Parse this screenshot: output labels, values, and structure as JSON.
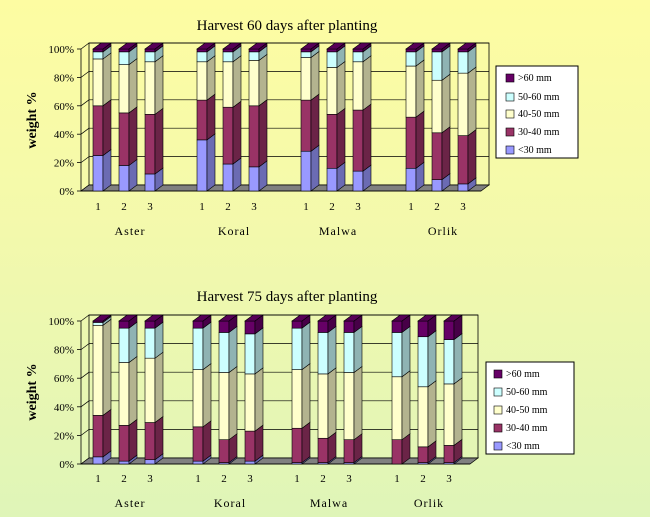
{
  "colors": {
    "lt30": "#9999ff",
    "r30_40": "#993366",
    "r40_50": "#ffffcc",
    "r50_60": "#ccffff",
    "gt60": "#660066",
    "floor": "#808080"
  },
  "legend_labels": [
    ">60 mm",
    "50-60 mm",
    "40-50 mm",
    "30-40 mm",
    "<30 mm"
  ],
  "chart_data": [
    {
      "type": "bar",
      "stacked": true,
      "title": "Harvest 60 days after planting",
      "ylabel": "weight %",
      "ylim": [
        0,
        100
      ],
      "yticks": [
        "0%",
        "20%",
        "40%",
        "60%",
        "80%",
        "100%"
      ],
      "groups": [
        {
          "name": "Aster",
          "bars": [
            {
              "label": "1",
              "values": [
                25,
                35,
                33,
                5,
                2
              ]
            },
            {
              "label": "2",
              "values": [
                18,
                37,
                34,
                9,
                2
              ]
            },
            {
              "label": "3",
              "values": [
                12,
                42,
                37,
                7,
                2
              ]
            }
          ]
        },
        {
          "name": "Koral",
          "bars": [
            {
              "label": "1",
              "values": [
                36,
                28,
                27,
                7,
                2
              ]
            },
            {
              "label": "2",
              "values": [
                19,
                40,
                32,
                7,
                2
              ]
            },
            {
              "label": "3",
              "values": [
                17,
                43,
                32,
                6,
                2
              ]
            }
          ]
        },
        {
          "name": "Malwa",
          "bars": [
            {
              "label": "1",
              "values": [
                28,
                36,
                30,
                4,
                2
              ]
            },
            {
              "label": "2",
              "values": [
                16,
                38,
                33,
                11,
                2
              ]
            },
            {
              "label": "3",
              "values": [
                14,
                43,
                34,
                7,
                2
              ]
            }
          ]
        },
        {
          "name": "Orlik",
          "bars": [
            {
              "label": "1",
              "values": [
                16,
                36,
                36,
                10,
                2
              ]
            },
            {
              "label": "2",
              "values": [
                8,
                33,
                37,
                20,
                2
              ]
            },
            {
              "label": "3",
              "values": [
                5,
                34,
                44,
                15,
                2
              ]
            }
          ]
        }
      ],
      "series_names": [
        "<30 mm",
        "30-40 mm",
        "40-50 mm",
        "50-60 mm",
        ">60 mm"
      ]
    },
    {
      "type": "bar",
      "stacked": true,
      "title": "Harvest 75 days after planting",
      "ylabel": "weight %",
      "ylim": [
        0,
        100
      ],
      "yticks": [
        "0%",
        "20%",
        "40%",
        "60%",
        "80%",
        "100%"
      ],
      "groups": [
        {
          "name": "Aster",
          "bars": [
            {
              "label": "1",
              "values": [
                5,
                29,
                63,
                2,
                1
              ]
            },
            {
              "label": "2",
              "values": [
                2,
                25,
                44,
                24,
                5
              ]
            },
            {
              "label": "3",
              "values": [
                3,
                26,
                45,
                21,
                5
              ]
            }
          ]
        },
        {
          "name": "Koral",
          "bars": [
            {
              "label": "1",
              "values": [
                2,
                24,
                40,
                29,
                5
              ]
            },
            {
              "label": "2",
              "values": [
                1,
                16,
                47,
                28,
                8
              ]
            },
            {
              "label": "3",
              "values": [
                2,
                21,
                40,
                28,
                9
              ]
            }
          ]
        },
        {
          "name": "Malwa",
          "bars": [
            {
              "label": "1",
              "values": [
                1,
                24,
                41,
                29,
                5
              ]
            },
            {
              "label": "2",
              "values": [
                1,
                17,
                45,
                29,
                8
              ]
            },
            {
              "label": "3",
              "values": [
                1,
                16,
                47,
                28,
                8
              ]
            }
          ]
        },
        {
          "name": "Orlik",
          "bars": [
            {
              "label": "1",
              "values": [
                0,
                17,
                44,
                31,
                8
              ]
            },
            {
              "label": "2",
              "values": [
                1,
                11,
                42,
                35,
                11
              ]
            },
            {
              "label": "3",
              "values": [
                1,
                12,
                43,
                31,
                13
              ]
            }
          ]
        }
      ],
      "series_names": [
        "<30 mm",
        "30-40 mm",
        "40-50 mm",
        "50-60 mm",
        ">60 mm"
      ]
    }
  ]
}
